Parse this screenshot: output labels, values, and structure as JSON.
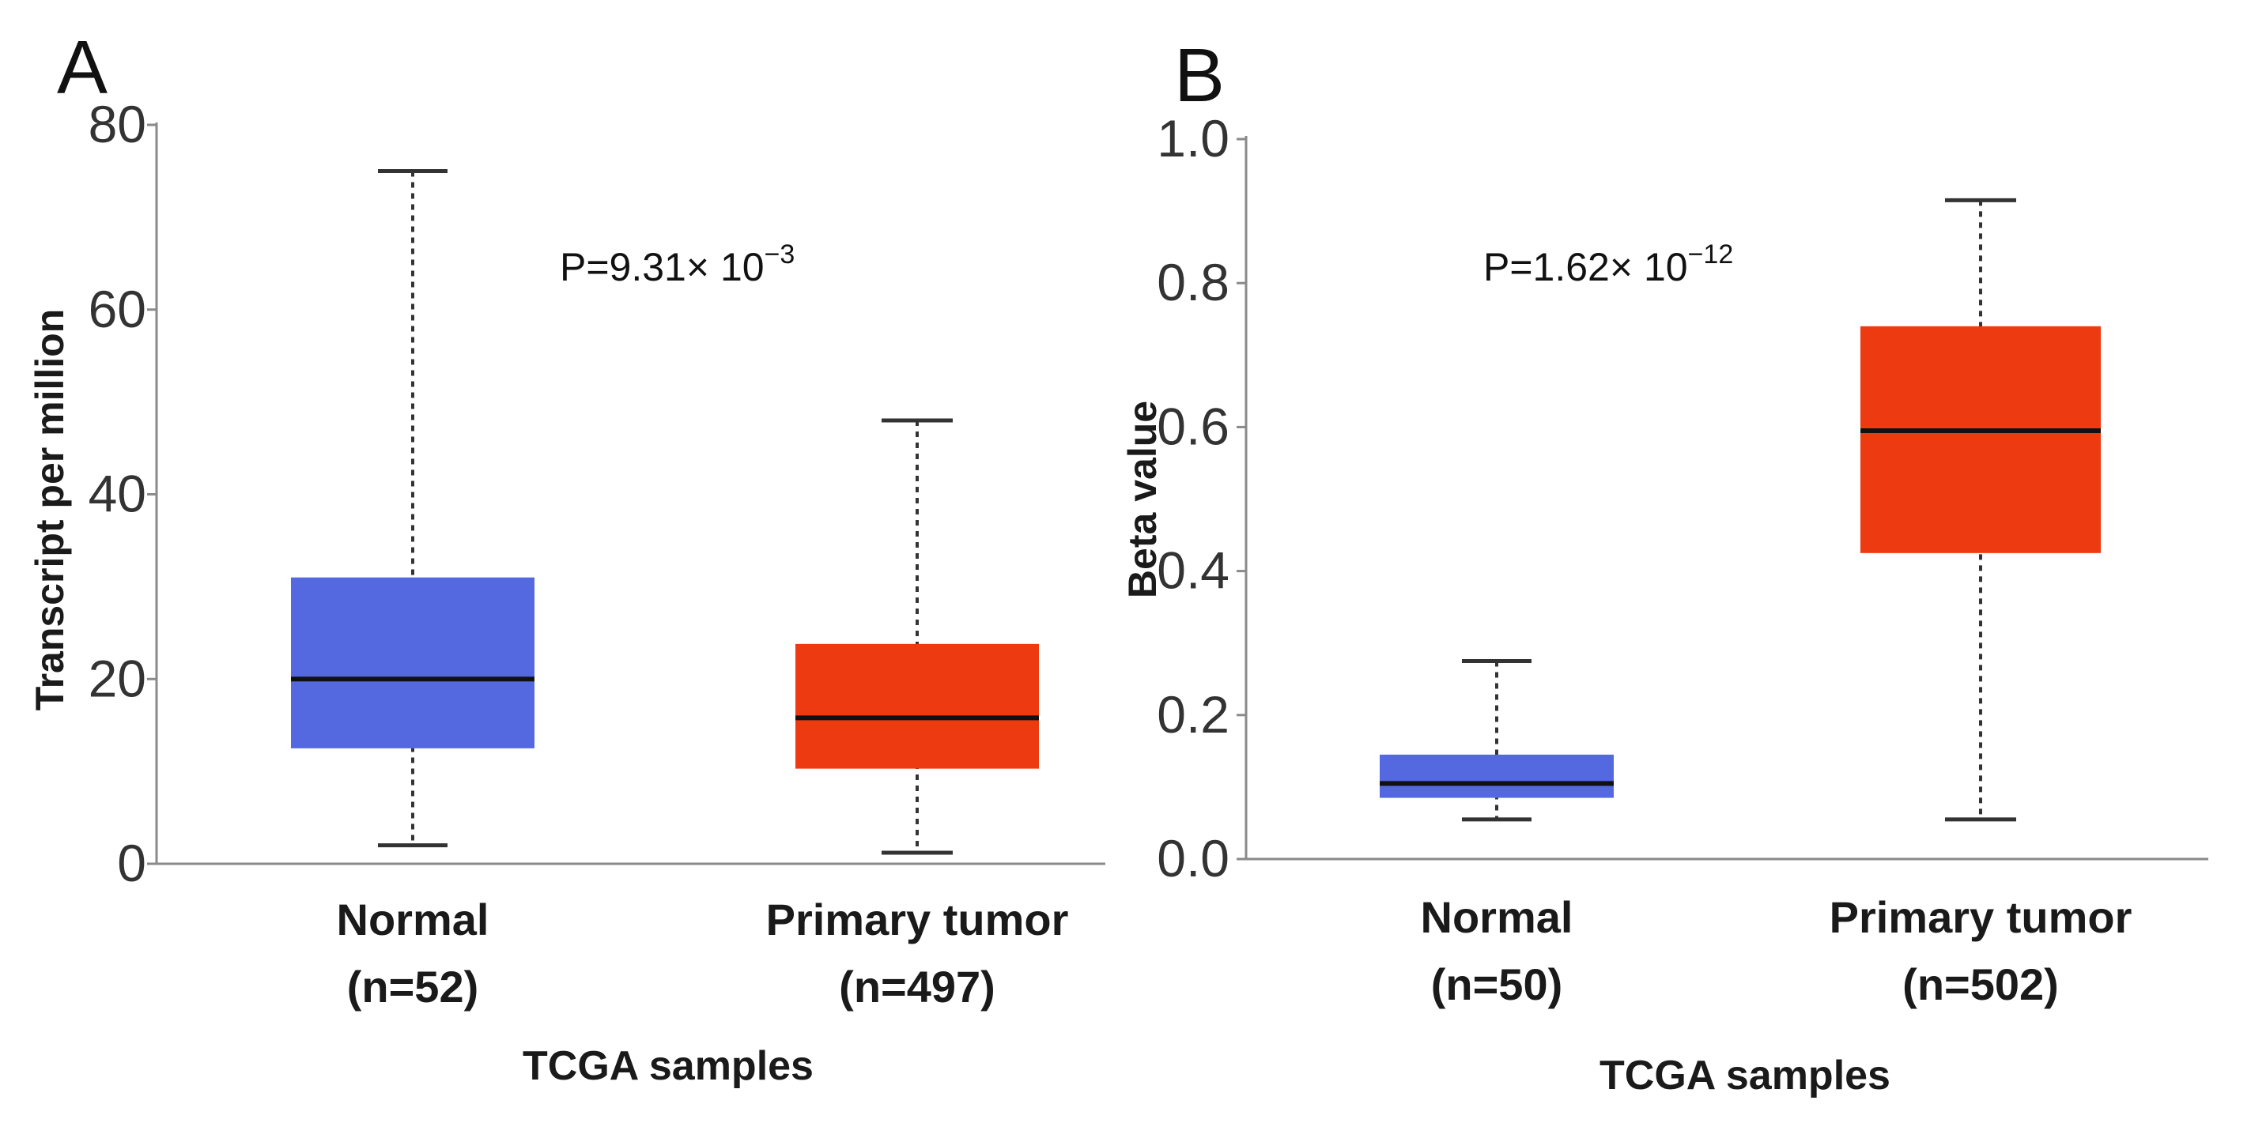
{
  "chart_data": [
    {
      "panel": "A",
      "type": "box",
      "ylabel": "Transcript per million",
      "xlabel": "TCGA samples",
      "ylim": [
        0,
        80
      ],
      "yticks": [
        "0",
        "20",
        "40",
        "60",
        "80"
      ],
      "pvalue": {
        "base": "P=9.31× 10",
        "exp": "−3"
      },
      "groups": [
        {
          "name": "Normal",
          "n": "(n=52)",
          "color": "#5468e0",
          "min": 2,
          "q1": 12.5,
          "median": 20,
          "q3": 31,
          "max": 75
        },
        {
          "name": "Primary tumor",
          "n": "(n=497)",
          "color": "#ee3a10",
          "min": 1.2,
          "q1": 10.3,
          "median": 15.8,
          "q3": 23.8,
          "max": 48
        }
      ]
    },
    {
      "panel": "B",
      "type": "box",
      "ylabel": "Beta value",
      "xlabel": "TCGA samples",
      "ylim": [
        0,
        1.0
      ],
      "yticks": [
        "0.0",
        "0.2",
        "0.4",
        "0.6",
        "0.8",
        "1.0"
      ],
      "pvalue": {
        "base": "P=1.62× 10",
        "exp": "−12"
      },
      "groups": [
        {
          "name": "Normal",
          "n": "(n=50)",
          "color": "#5468e0",
          "min": 0.055,
          "q1": 0.085,
          "median": 0.105,
          "q3": 0.145,
          "max": 0.275
        },
        {
          "name": "Primary tumor",
          "n": "(n=502)",
          "color": "#ee3a10",
          "min": 0.055,
          "q1": 0.425,
          "median": 0.595,
          "q3": 0.74,
          "max": 0.915
        }
      ]
    }
  ]
}
